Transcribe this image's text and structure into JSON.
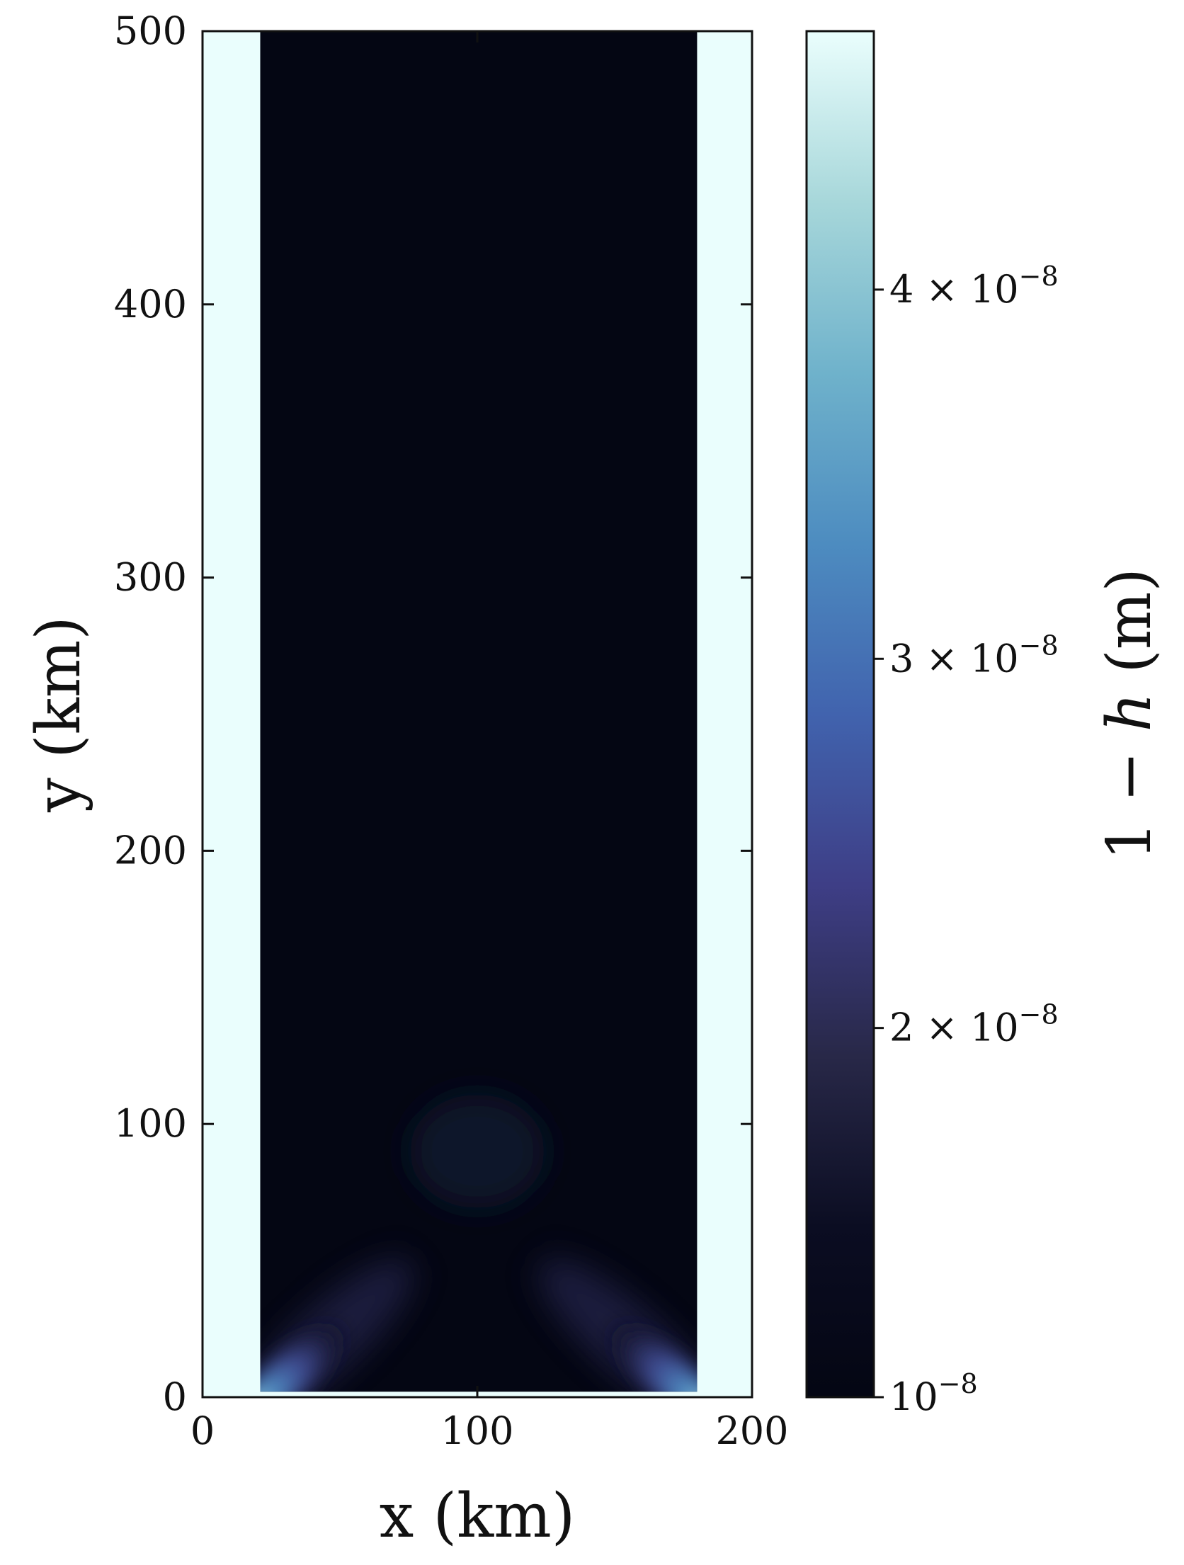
{
  "chart_data": {
    "type": "heatmap",
    "title": "",
    "xlabel": "x (km)",
    "ylabel": "y (km)",
    "xlim": [
      0,
      200
    ],
    "ylim": [
      0,
      500
    ],
    "xticks": [
      0,
      100,
      200
    ],
    "xtick_labels": [
      "0",
      "100",
      "200"
    ],
    "yticks": [
      0,
      100,
      200,
      300,
      400,
      500
    ],
    "ytick_labels": [
      "0",
      "100",
      "200",
      "300",
      "400",
      "500"
    ],
    "grid": false,
    "colormap": "ice",
    "colormap_stops": [
      "#040613",
      "#0b0d22",
      "#282848",
      "#3e3e86",
      "#4163ae",
      "#4d8cc0",
      "#6fb2cb",
      "#a7d7da",
      "#eafefd"
    ],
    "domain_x": [
      21,
      180
    ],
    "domain_y": [
      2,
      500
    ],
    "background_color": "#eafefd",
    "features": [
      {
        "kind": "plume",
        "from": [
          25,
          2
        ],
        "to": [
          53,
          28
        ],
        "peak_value": 4.4e-08
      },
      {
        "kind": "plume",
        "from": [
          176,
          2
        ],
        "to": [
          147,
          28
        ],
        "peak_value": 4.4e-08
      },
      {
        "kind": "arc",
        "center": [
          100,
          90
        ],
        "value": 1.1e-08
      }
    ],
    "colorbar": {
      "label": "1 − h (m)",
      "label_parts": [
        "1 − ",
        "h",
        " (m)"
      ],
      "min": 1e-08,
      "max": 4.7e-08,
      "ticks": [
        1e-08,
        2e-08,
        3e-08,
        4e-08
      ],
      "tick_labels": [
        {
          "mantissa": "",
          "times": "",
          "base": "10",
          "exponent": "−8"
        },
        {
          "mantissa": "2",
          "times": "×",
          "base": "10",
          "exponent": "−8"
        },
        {
          "mantissa": "3",
          "times": "×",
          "base": "10",
          "exponent": "−8"
        },
        {
          "mantissa": "4",
          "times": "×",
          "base": "10",
          "exponent": "−8"
        }
      ]
    }
  }
}
